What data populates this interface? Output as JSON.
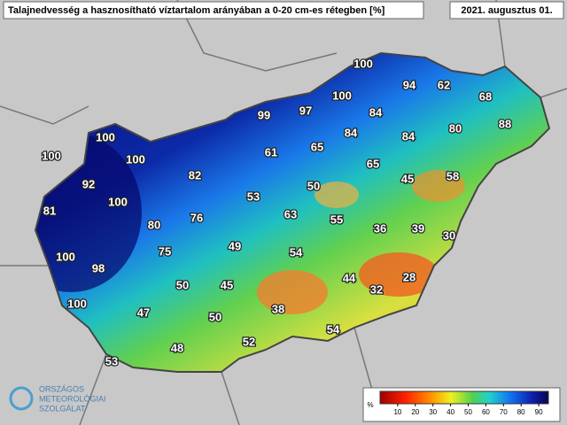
{
  "title": "Talajnedvesség a hasznosítható víztartalom arányában a 0-20 cm-es rétegben [%]",
  "date": "2021. augusztus 01.",
  "values": [
    100,
    94,
    62,
    68,
    100,
    99,
    97,
    84,
    100,
    84,
    84,
    80,
    88,
    100,
    100,
    65,
    61,
    65,
    92,
    82,
    45,
    58,
    100,
    50,
    53,
    81,
    63,
    76,
    80,
    55,
    36,
    39,
    30,
    49,
    54,
    75,
    100,
    98,
    44,
    28,
    50,
    45,
    32,
    100,
    47,
    38,
    50,
    54,
    52,
    48,
    53
  ],
  "legend": {
    "unit": "%",
    "ticks": [
      10,
      20,
      30,
      40,
      50,
      60,
      70,
      80,
      90
    ]
  },
  "logo": [
    "ORSZÁGOS",
    "METEOROLÓGIAI",
    "SZOLGÁLAT"
  ]
}
